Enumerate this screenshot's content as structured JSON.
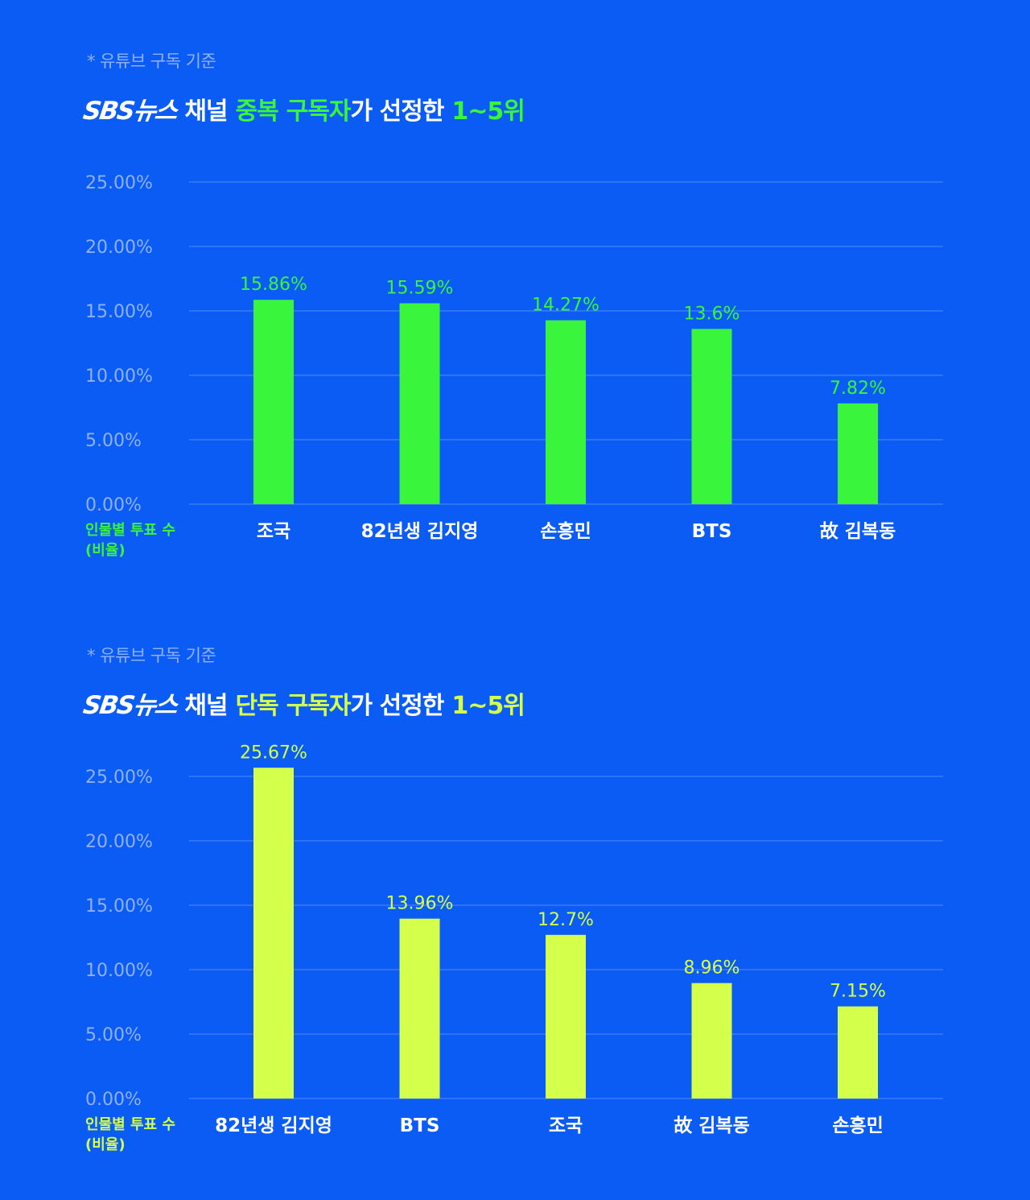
{
  "chart_data": [
    {
      "type": "bar",
      "note": "* 유튜브 구독 기준",
      "title_parts": [
        {
          "text": "SBS뉴스",
          "role": "logo"
        },
        {
          "text": "채널",
          "role": "white"
        },
        {
          "text": "중복",
          "role": "accent"
        },
        {
          "text": "구독자",
          "role": "accent"
        },
        {
          "text": "가 선정한",
          "role": "white"
        },
        {
          "text": "1~5위",
          "role": "accent"
        }
      ],
      "categories": [
        "조국",
        "82년생 김지영",
        "손흥민",
        "BTS",
        "故 김복동"
      ],
      "values": [
        15.86,
        15.59,
        14.27,
        13.6,
        7.82
      ],
      "value_labels": [
        "15.86%",
        "15.59%",
        "14.27%",
        "13.6%",
        "7.82%"
      ],
      "ylabel": "인물별 투표 수\n(비율)",
      "yticks": [
        "0.00%",
        "5.00%",
        "10.00%",
        "15.00%",
        "20.00%",
        "25.00%"
      ],
      "ylim": [
        0,
        25
      ],
      "grid": true,
      "bar_color": "#39f53c"
    },
    {
      "type": "bar",
      "note": "* 유튜브 구독 기준",
      "title_parts": [
        {
          "text": "SBS뉴스",
          "role": "logo"
        },
        {
          "text": "채널",
          "role": "white"
        },
        {
          "text": "단독",
          "role": "accent"
        },
        {
          "text": "구독자",
          "role": "accent"
        },
        {
          "text": "가 선정한",
          "role": "white"
        },
        {
          "text": "1~5위",
          "role": "accent"
        }
      ],
      "categories": [
        "82년생 김지영",
        "BTS",
        "조국",
        "故 김복동",
        "손흥민"
      ],
      "values": [
        25.67,
        13.96,
        12.7,
        8.96,
        7.15
      ],
      "value_labels": [
        "25.67%",
        "13.96%",
        "12.7%",
        "8.96%",
        "7.15%"
      ],
      "ylabel": "인물별 투표 수\n(비율)",
      "yticks": [
        "0.00%",
        "5.00%",
        "10.00%",
        "15.00%",
        "20.00%",
        "25.00%"
      ],
      "ylim": [
        0,
        25
      ],
      "grid": true,
      "bar_color": "#d4ff4a"
    }
  ]
}
